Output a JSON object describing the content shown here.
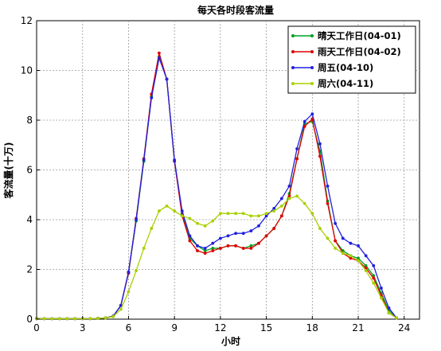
{
  "chart_data": {
    "type": "line",
    "title": "每天各时段客流量",
    "xlabel": "小时",
    "ylabel": "客流量(十万)",
    "xlim": [
      0,
      25
    ],
    "ylim": [
      0,
      12
    ],
    "xticks": [
      0,
      3,
      6,
      9,
      12,
      15,
      18,
      21,
      24
    ],
    "yticks": [
      0,
      2,
      4,
      6,
      8,
      10,
      12
    ],
    "grid": true,
    "legend_position": "top-right",
    "x": [
      0,
      0.5,
      1,
      1.5,
      2,
      2.5,
      3,
      3.5,
      4,
      4.5,
      5,
      5.5,
      6,
      6.5,
      7,
      7.5,
      8,
      8.5,
      9,
      9.5,
      10,
      10.5,
      11,
      11.5,
      12,
      12.5,
      13,
      13.5,
      14,
      14.5,
      15,
      15.5,
      16,
      16.5,
      17,
      17.5,
      18,
      18.5,
      19,
      19.5,
      20,
      20.5,
      21,
      21.5,
      22,
      22.5,
      23,
      23.5
    ],
    "series": [
      {
        "name": "晴天工作日(04-01)",
        "color": "#00a020",
        "values": [
          0.02,
          0.02,
          0.02,
          0.02,
          0.02,
          0.02,
          0.02,
          0.02,
          0.03,
          0.05,
          0.12,
          0.55,
          1.85,
          3.95,
          6.35,
          8.95,
          10.55,
          9.65,
          6.35,
          4.25,
          3.25,
          2.95,
          2.75,
          2.85,
          2.85,
          2.95,
          2.95,
          2.85,
          2.95,
          3.05,
          3.35,
          3.65,
          4.15,
          5.05,
          6.45,
          7.85,
          7.95,
          6.75,
          4.75,
          3.15,
          2.75,
          2.55,
          2.45,
          2.15,
          1.75,
          1.05,
          0.35,
          0.05
        ]
      },
      {
        "name": "雨天工作日(04-02)",
        "color": "#e00000",
        "values": [
          0.02,
          0.02,
          0.02,
          0.02,
          0.02,
          0.02,
          0.02,
          0.02,
          0.03,
          0.05,
          0.12,
          0.55,
          1.85,
          4.05,
          6.45,
          9.05,
          10.7,
          9.65,
          6.35,
          4.15,
          3.15,
          2.75,
          2.65,
          2.75,
          2.85,
          2.95,
          2.95,
          2.85,
          2.85,
          3.05,
          3.35,
          3.65,
          4.15,
          4.95,
          6.45,
          7.75,
          8.05,
          6.55,
          4.65,
          3.15,
          2.65,
          2.45,
          2.35,
          2.05,
          1.65,
          0.95,
          0.25,
          0.05
        ]
      },
      {
        "name": "周五(04-10)",
        "color": "#2020e0",
        "values": [
          0.02,
          0.02,
          0.02,
          0.02,
          0.02,
          0.02,
          0.02,
          0.02,
          0.03,
          0.05,
          0.12,
          0.55,
          1.9,
          4.0,
          6.4,
          8.9,
          10.5,
          9.65,
          6.4,
          4.35,
          3.35,
          2.95,
          2.85,
          3.05,
          3.25,
          3.35,
          3.45,
          3.45,
          3.55,
          3.75,
          4.15,
          4.45,
          4.85,
          5.35,
          6.85,
          7.95,
          8.25,
          7.05,
          5.35,
          3.85,
          3.25,
          3.05,
          2.95,
          2.55,
          2.15,
          1.25,
          0.45,
          0.05
        ]
      },
      {
        "name": "周六(04-11)",
        "color": "#a8d000",
        "values": [
          0.02,
          0.02,
          0.02,
          0.02,
          0.02,
          0.02,
          0.02,
          0.02,
          0.03,
          0.05,
          0.1,
          0.4,
          1.1,
          1.95,
          2.85,
          3.65,
          4.35,
          4.55,
          4.35,
          4.15,
          4.05,
          3.85,
          3.75,
          3.95,
          4.25,
          4.25,
          4.25,
          4.25,
          4.15,
          4.15,
          4.25,
          4.35,
          4.55,
          4.85,
          4.95,
          4.65,
          4.25,
          3.65,
          3.25,
          2.85,
          2.65,
          2.55,
          2.35,
          1.95,
          1.45,
          0.85,
          0.25,
          0.05
        ]
      }
    ]
  }
}
